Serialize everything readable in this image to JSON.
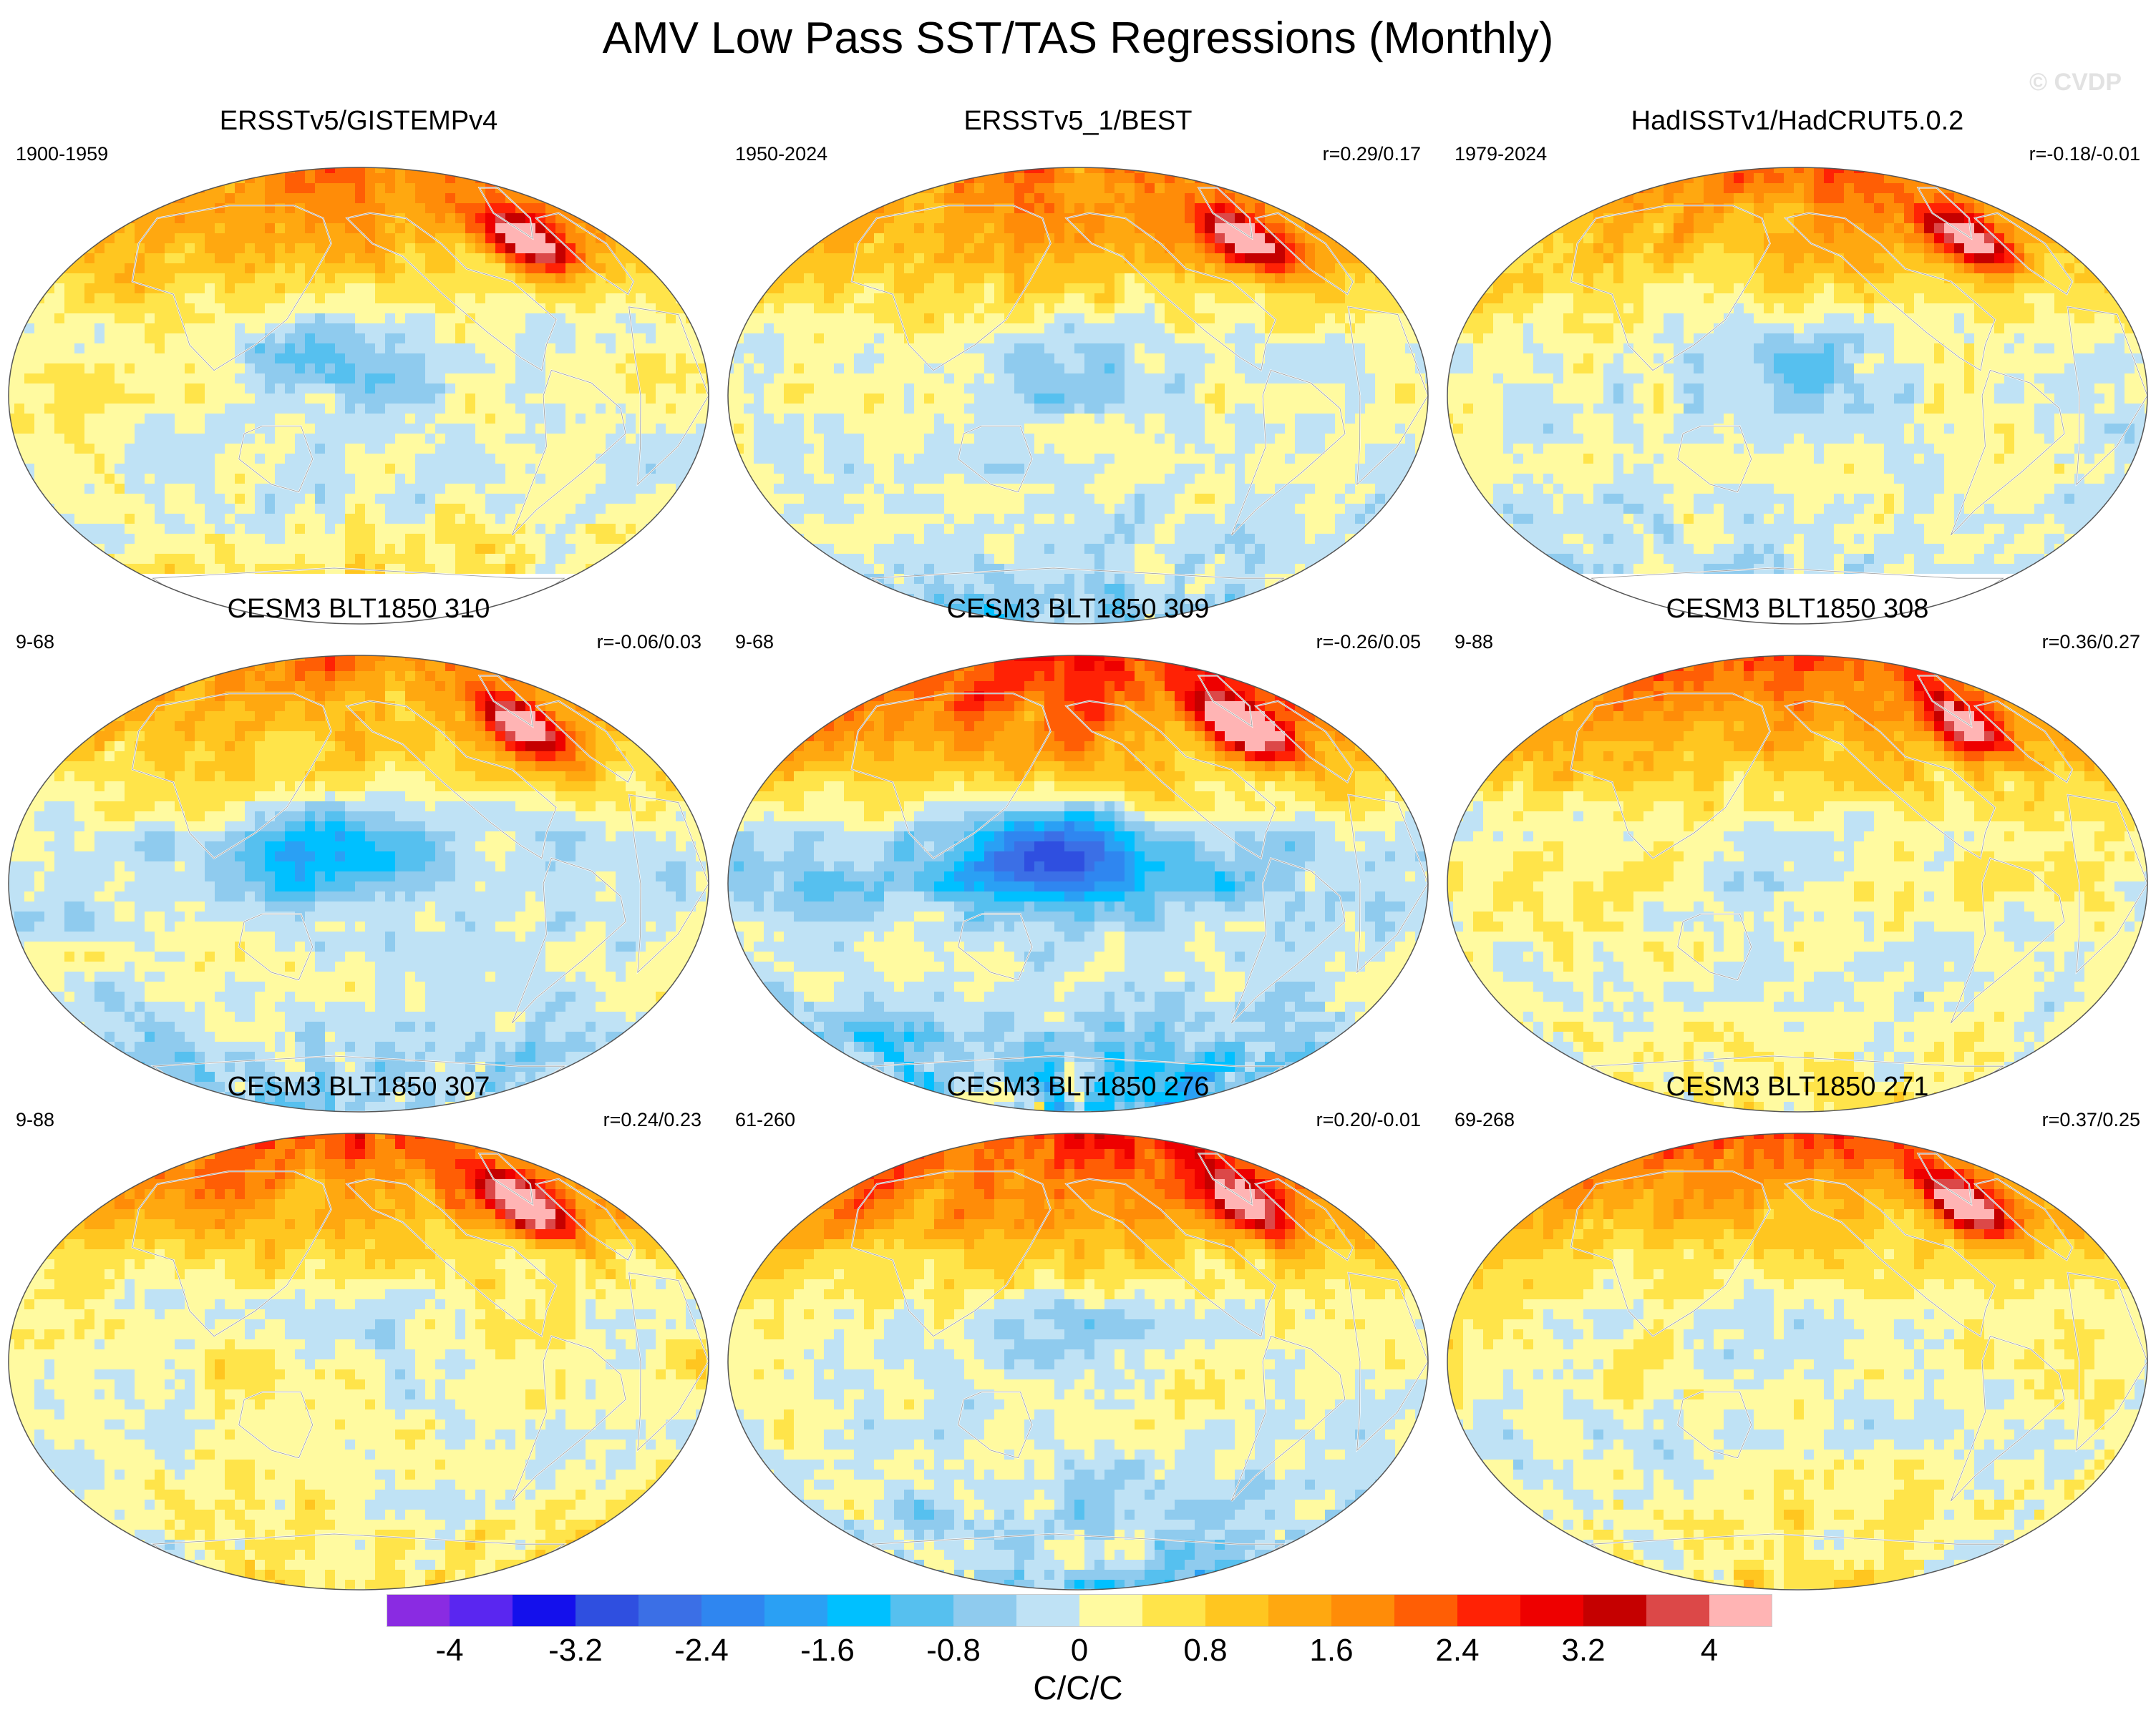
{
  "figure": {
    "title": "AMV Low Pass SST/TAS Regressions (Monthly)",
    "watermark": "© CVDP"
  },
  "colors": {
    "land_outline": "#ffffff",
    "coast_outline": "#9a9a9a",
    "frame": "#555555"
  },
  "panels": [
    {
      "title": "ERSSTv5/GISTEMPv4",
      "period": "1900-1959",
      "corr": "",
      "pattern": {
        "nh_high": 2.0,
        "tropics": 1.0,
        "south": 0.8,
        "pac_cold": -1.6,
        "spot": 4.2,
        "antarctic_missing": true
      }
    },
    {
      "title": "ERSSTv5_1/BEST",
      "period": "1950-2024",
      "corr": "r=0.29/0.17",
      "pattern": {
        "nh_high": 2.2,
        "tropics": 0.3,
        "south": -0.6,
        "pac_cold": -0.8,
        "spot": 3.6,
        "antarctic_missing": false
      }
    },
    {
      "title": "HadISSTv1/HadCRUT5.0.2",
      "period": "1979-2024",
      "corr": "r=-0.18/-0.01",
      "pattern": {
        "nh_high": 2.0,
        "tropics": 0.2,
        "south": -0.4,
        "pac_cold": -1.0,
        "spot": 3.4,
        "antarctic_missing": true
      }
    },
    {
      "title": "CESM3 BLT1850 310",
      "period": "9-68",
      "corr": "r=-0.06/0.03",
      "pattern": {
        "nh_high": 1.8,
        "tropics": -0.6,
        "south": -0.6,
        "pac_cold": -1.8,
        "spot": 4.0,
        "antarctic_missing": false
      }
    },
    {
      "title": "CESM3 BLT1850 309",
      "period": "9-68",
      "corr": "r=-0.26/0.05",
      "pattern": {
        "nh_high": 3.0,
        "tropics": -1.6,
        "south": -1.2,
        "pac_cold": -3.4,
        "spot": 4.4,
        "antarctic_missing": false
      }
    },
    {
      "title": "CESM3 BLT1850 308",
      "period": "9-88",
      "corr": "r=0.36/0.27",
      "pattern": {
        "nh_high": 2.4,
        "tropics": 1.0,
        "south": 0.4,
        "pac_cold": -0.8,
        "spot": 3.8,
        "antarctic_missing": false
      }
    },
    {
      "title": "CESM3 BLT1850 307",
      "period": "9-88",
      "corr": "r=0.24/0.23",
      "pattern": {
        "nh_high": 2.4,
        "tropics": 1.0,
        "south": 0.6,
        "pac_cold": -0.6,
        "spot": 4.0,
        "antarctic_missing": false
      }
    },
    {
      "title": "CESM3 BLT1850 276",
      "period": "61-260",
      "corr": "r=0.20/-0.01",
      "pattern": {
        "nh_high": 2.8,
        "tropics": 0.4,
        "south": -0.8,
        "pac_cold": -0.8,
        "spot": 3.6,
        "antarctic_missing": false
      }
    },
    {
      "title": "CESM3 BLT1850 271",
      "period": "69-268",
      "corr": "r=0.37/0.25",
      "pattern": {
        "nh_high": 2.2,
        "tropics": 0.8,
        "south": 0.6,
        "pac_cold": -0.6,
        "spot": 3.8,
        "antarctic_missing": false
      }
    }
  ],
  "colorbar": {
    "units": "C/C/C",
    "levels": [
      -4.4,
      -4,
      -3.6,
      -3.2,
      -2.8,
      -2.4,
      -2,
      -1.6,
      -1.2,
      -0.8,
      -0.4,
      0,
      0.4,
      0.8,
      1.2,
      1.6,
      2,
      2.4,
      2.8,
      3.2,
      3.6,
      4,
      4.4
    ],
    "tick_labels": [
      "-4",
      "-3.2",
      "-2.4",
      "-1.6",
      "-0.8",
      "0",
      "0.8",
      "1.6",
      "2.4",
      "3.2",
      "4"
    ],
    "tick_values": [
      -4,
      -3.2,
      -2.4,
      -1.6,
      -0.8,
      0,
      0.8,
      1.6,
      2.4,
      3.2,
      4
    ],
    "colors": [
      "#8a2be2",
      "#5a26f0",
      "#1410ec",
      "#2f4fe0",
      "#3b6fe6",
      "#2f86f0",
      "#2aa0f4",
      "#00c0ff",
      "#56c0ef",
      "#8fcbee",
      "#bfe2f5",
      "#fffaa0",
      "#ffe44a",
      "#ffc620",
      "#ffa810",
      "#ff8c08",
      "#ff5e05",
      "#ff2205",
      "#ee0000",
      "#c50000",
      "#dc4848",
      "#ffb4b4"
    ]
  }
}
